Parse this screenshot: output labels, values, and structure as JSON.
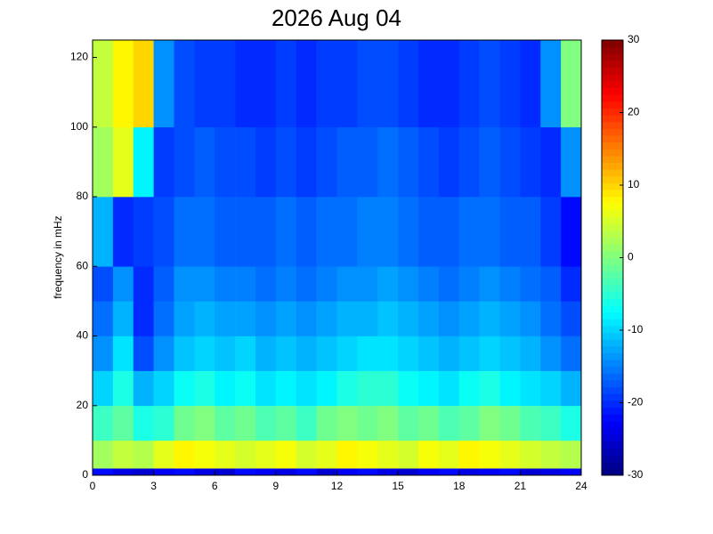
{
  "chart_data": {
    "type": "heatmap",
    "title": "2026 Aug 04",
    "y_label": "frequency in mHz",
    "colormap": "jet",
    "x_bins": [
      0,
      1,
      2,
      3,
      4,
      5,
      6,
      7,
      8,
      9,
      10,
      11,
      12,
      13,
      14,
      15,
      16,
      17,
      18,
      19,
      20,
      21,
      22,
      23,
      24
    ],
    "y_bins": [
      0,
      2,
      10,
      20,
      30,
      40,
      50,
      60,
      80,
      100,
      125
    ],
    "z": [
      [
        -22,
        -24,
        -25,
        -23,
        -22,
        -24,
        -25,
        -22,
        -23,
        -24,
        -22,
        -25,
        -23,
        -22,
        -24,
        -25,
        -23,
        -22,
        -24,
        -23,
        -22,
        -25,
        -24,
        -23
      ],
      [
        2,
        4,
        3,
        6,
        8,
        7,
        6,
        5,
        6,
        7,
        5,
        6,
        8,
        7,
        6,
        5,
        7,
        6,
        8,
        7,
        6,
        5,
        4,
        3
      ],
      [
        -4,
        -2,
        -6,
        -5,
        -1,
        0,
        -2,
        -1,
        -3,
        -2,
        -4,
        -1,
        0,
        -1,
        0,
        -2,
        -1,
        -3,
        -2,
        0,
        -1,
        -3,
        -4,
        -6
      ],
      [
        -10,
        -6,
        -12,
        -10,
        -7,
        -6,
        -8,
        -7,
        -9,
        -8,
        -9,
        -8,
        -6,
        -5,
        -5,
        -7,
        -8,
        -9,
        -7,
        -6,
        -8,
        -9,
        -10,
        -12
      ],
      [
        -14,
        -9,
        -18,
        -14,
        -11,
        -10,
        -11,
        -10,
        -12,
        -11,
        -12,
        -11,
        -10,
        -9,
        -9,
        -10,
        -11,
        -12,
        -11,
        -10,
        -11,
        -12,
        -14,
        -16
      ],
      [
        -16,
        -12,
        -20,
        -16,
        -13,
        -12,
        -13,
        -13,
        -14,
        -13,
        -14,
        -13,
        -12,
        -12,
        -11,
        -12,
        -13,
        -14,
        -13,
        -12,
        -13,
        -14,
        -16,
        -18
      ],
      [
        -18,
        -14,
        -20,
        -17,
        -14,
        -14,
        -15,
        -15,
        -16,
        -15,
        -16,
        -15,
        -14,
        -14,
        -13,
        -14,
        -15,
        -16,
        -15,
        -14,
        -15,
        -16,
        -17,
        -20
      ],
      [
        -12,
        -20,
        -19,
        -18,
        -16,
        -16,
        -17,
        -17,
        -17,
        -16,
        -17,
        -16,
        -16,
        -15,
        -15,
        -16,
        -17,
        -17,
        -16,
        -16,
        -17,
        -17,
        -19,
        -22
      ],
      [
        2,
        6,
        -8,
        -19,
        -18,
        -17,
        -18,
        -18,
        -19,
        -18,
        -19,
        -18,
        -17,
        -17,
        -16,
        -17,
        -18,
        -19,
        -18,
        -17,
        -18,
        -19,
        -20,
        -14
      ],
      [
        4,
        8,
        10,
        -14,
        -18,
        -19,
        -19,
        -20,
        -20,
        -19,
        -20,
        -19,
        -19,
        -18,
        -18,
        -19,
        -20,
        -20,
        -19,
        -18,
        -19,
        -20,
        -14,
        0
      ]
    ],
    "xlim": [
      0,
      24
    ],
    "xticks": [
      0,
      3,
      6,
      9,
      12,
      15,
      18,
      21,
      24
    ],
    "ylim": [
      0,
      125
    ],
    "yticks": [
      0,
      20,
      40,
      60,
      80,
      100,
      120
    ],
    "zlim": [
      -30,
      30
    ],
    "zticks": [
      -30,
      -20,
      -10,
      0,
      10,
      20,
      30
    ]
  }
}
